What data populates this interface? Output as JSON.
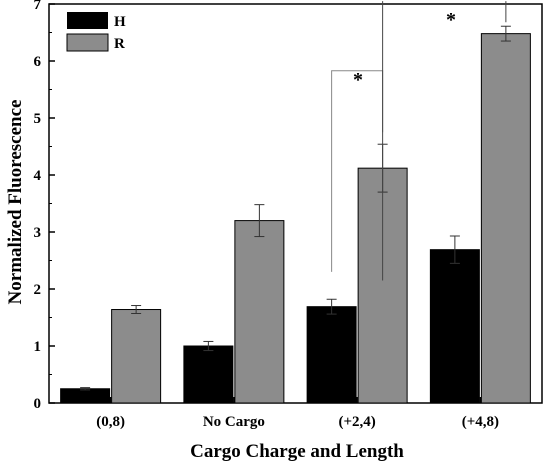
{
  "chart_data": {
    "type": "bar",
    "xlabel": "Cargo Charge and Length",
    "ylabel": "Normalized Fluorescence",
    "ylim": [
      0,
      7
    ],
    "yticks": [
      "0",
      "1",
      "2",
      "3",
      "4",
      "5",
      "6",
      "7"
    ],
    "categories": [
      "(0,8)",
      "No Cargo",
      "(+2,4)",
      "(+4,8)"
    ],
    "series": [
      {
        "name": "H",
        "color": "#000000",
        "values": [
          0.25,
          1.0,
          1.69,
          2.69
        ],
        "errors": [
          0.02,
          0.08,
          0.13,
          0.24
        ]
      },
      {
        "name": "R",
        "color": "#8c8c8c",
        "values": [
          1.64,
          3.2,
          4.12,
          6.48
        ],
        "errors": [
          0.07,
          0.28,
          0.42,
          0.13
        ]
      }
    ],
    "legend_position": "top-left",
    "grid": false,
    "annotations": [
      "*",
      "*"
    ]
  }
}
